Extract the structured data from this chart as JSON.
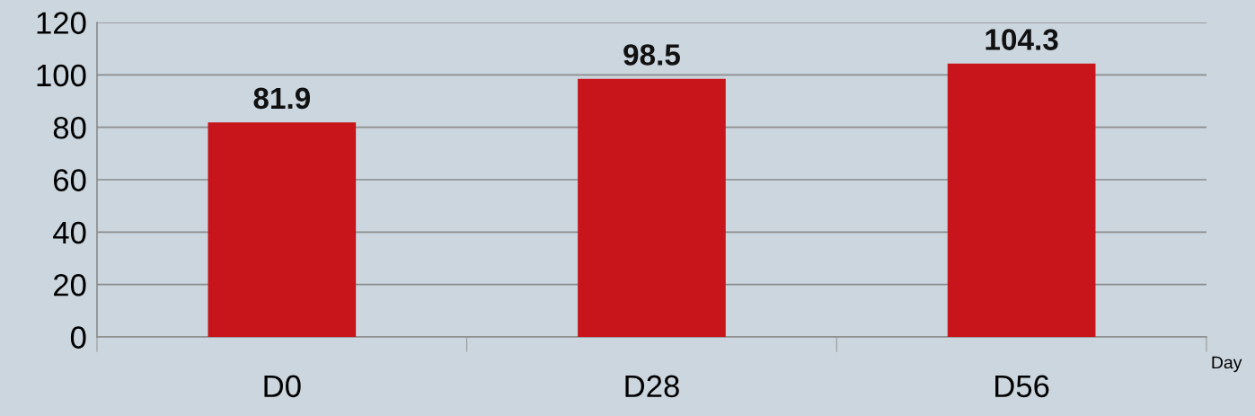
{
  "chart_data": {
    "type": "bar",
    "xlabel": "Day",
    "categories": [
      "D0",
      "D28",
      "D56"
    ],
    "values": [
      81.9,
      98.5,
      104.3
    ],
    "color": "#c8141b",
    "ylim": [
      0,
      120
    ],
    "yticks": [
      0,
      20,
      40,
      60,
      80,
      100,
      120
    ],
    "grid": "y",
    "data_labels": true
  }
}
